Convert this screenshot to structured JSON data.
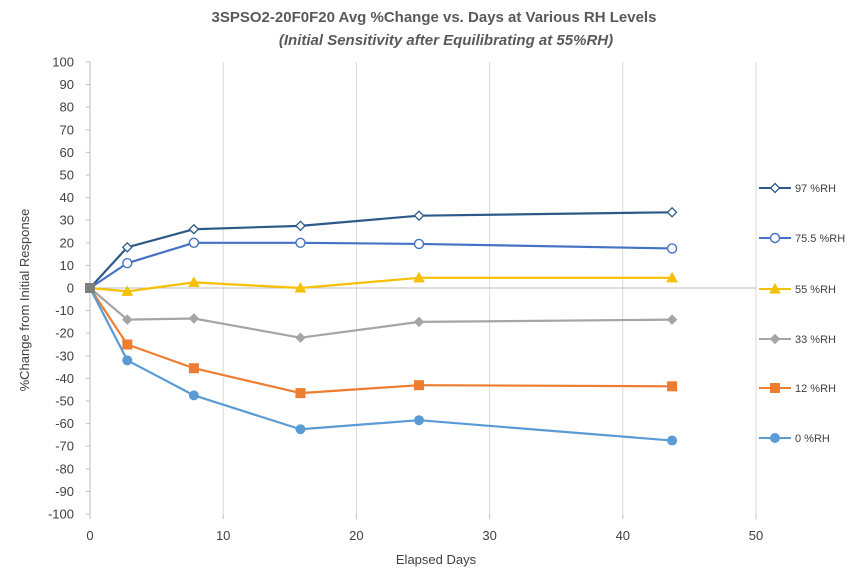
{
  "chart_data": {
    "type": "line",
    "title": "3SPSO2-20F0F20 Avg %Change vs. Days at Various RH Levels",
    "subtitle": "(Initial Sensitivity after Equilibrating at 55%RH)",
    "xlabel": "Elapsed Days",
    "ylabel": "%Change from Initial Response",
    "xlim": [
      0,
      50
    ],
    "ylim": [
      -100,
      100
    ],
    "x_ticks": [
      0,
      10,
      20,
      30,
      40,
      50
    ],
    "y_ticks": [
      100,
      90,
      80,
      70,
      60,
      50,
      40,
      30,
      20,
      10,
      0,
      -10,
      -20,
      -30,
      -40,
      -50,
      -60,
      -70,
      -80,
      -90,
      -100
    ],
    "grid": "vertical",
    "legend_position": "right",
    "series": [
      {
        "name": "97 %RH",
        "color": "#2e5a88",
        "marker": "diamond-open",
        "x": [
          0,
          2.8,
          7.8,
          15.8,
          24.7,
          43.7
        ],
        "y": [
          0,
          18,
          26,
          27.5,
          32,
          33.5
        ]
      },
      {
        "name": "75.5 %RH",
        "color": "#4472c4",
        "marker": "circle-open",
        "x": [
          0,
          2.8,
          7.8,
          15.8,
          24.7,
          43.7
        ],
        "y": [
          0,
          11,
          20,
          20,
          19.5,
          17.5
        ]
      },
      {
        "name": "55 %RH",
        "color": "#f5c000",
        "marker": "triangle",
        "x": [
          0,
          2.8,
          7.8,
          15.8,
          24.7,
          43.7
        ],
        "y": [
          0,
          -1.5,
          2.5,
          0,
          4.5,
          4.5
        ]
      },
      {
        "name": "33 %RH",
        "color": "#a5a5a5",
        "marker": "diamond",
        "x": [
          0,
          2.8,
          7.8,
          15.8,
          24.7,
          43.7
        ],
        "y": [
          0,
          -14,
          -13.5,
          -22,
          -15,
          -14
        ]
      },
      {
        "name": "12 %RH",
        "color": "#ed7d31",
        "marker": "square",
        "x": [
          0,
          2.8,
          7.8,
          15.8,
          24.7,
          43.7
        ],
        "y": [
          0,
          -25,
          -35.5,
          -46.5,
          -43,
          -43.5
        ]
      },
      {
        "name": "0 %RH",
        "color": "#5b9bd5",
        "marker": "circle",
        "x": [
          0,
          2.8,
          7.8,
          15.8,
          24.7,
          43.7
        ],
        "y": [
          0,
          -32,
          -47.5,
          -62.5,
          -58.5,
          -67.5
        ]
      }
    ]
  }
}
